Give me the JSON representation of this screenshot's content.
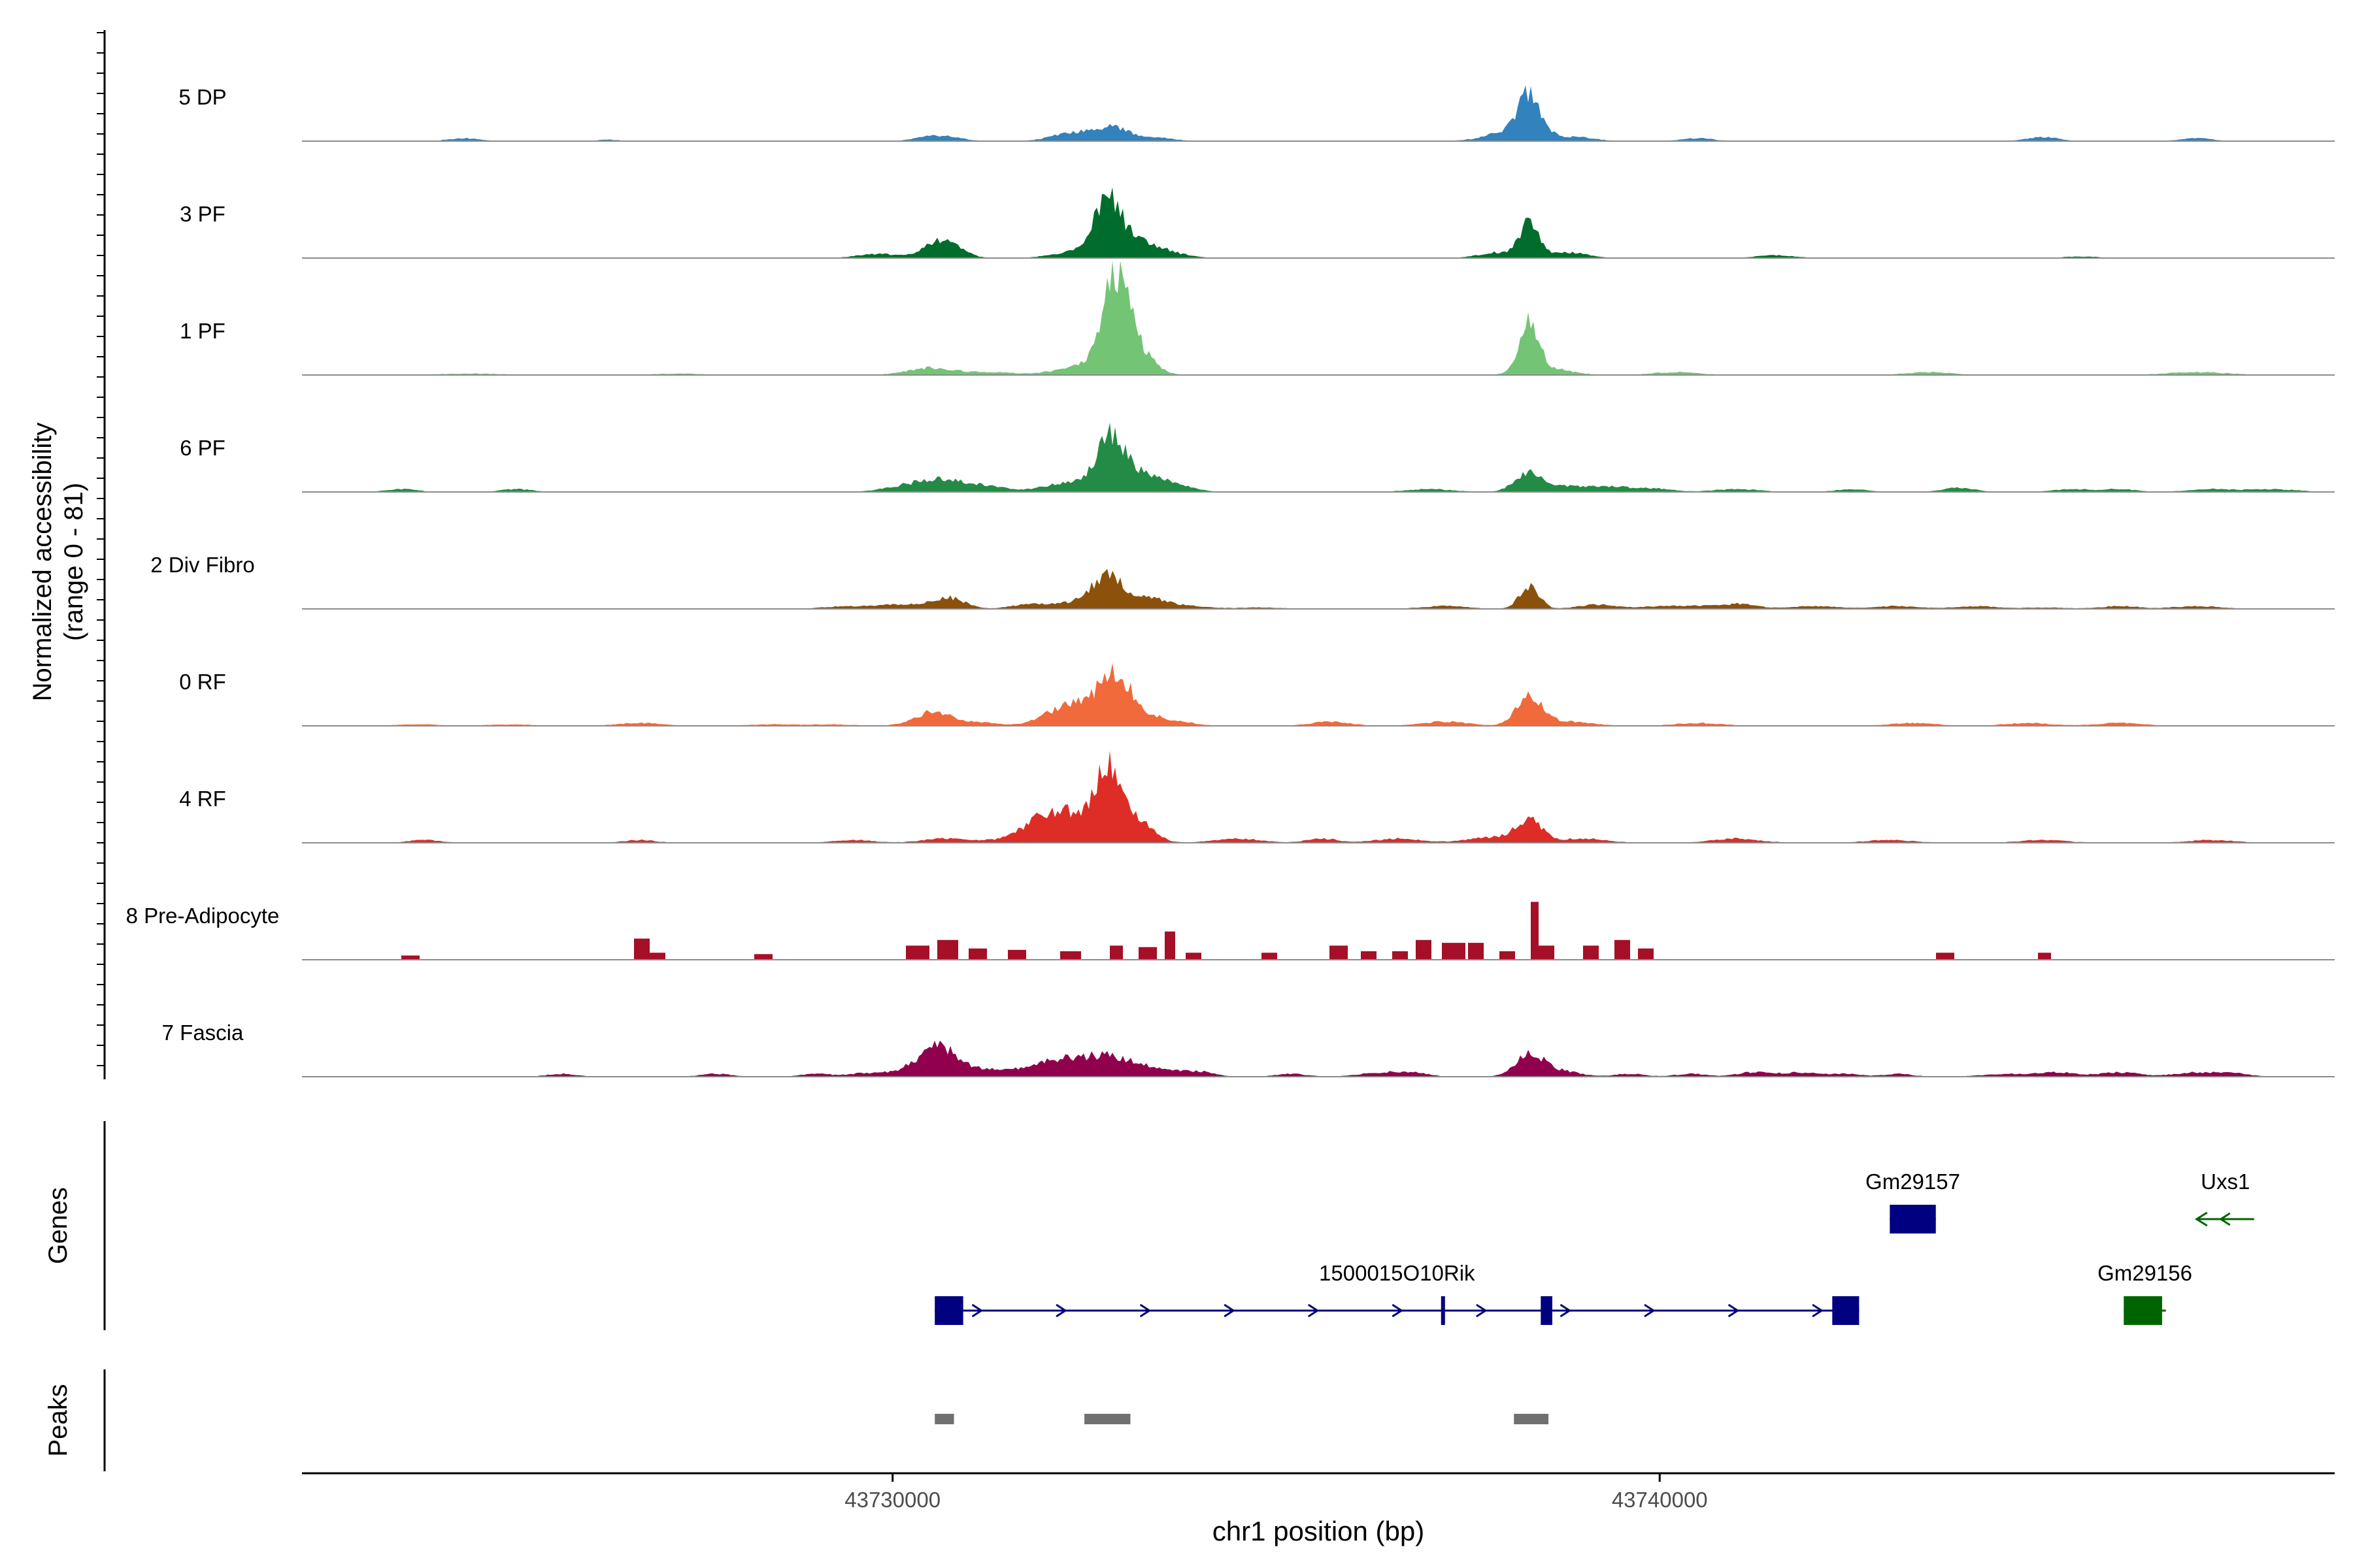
{
  "chart_data": {
    "type": "area",
    "title": "",
    "xlabel": "chr1 position (bp)",
    "ylabel_line1": "Normalized accessibility",
    "ylabel_line2": "(range 0 - 81)",
    "y_range": [
      0,
      81
    ],
    "x_range": [
      43722300,
      43748800
    ],
    "x_ticks": [
      43730000,
      43740000
    ],
    "x_tick_labels": [
      "43730000",
      "43740000"
    ],
    "tracks": [
      {
        "name": "5 DP",
        "color": "#3182BD",
        "style": "smooth",
        "peaks": [
          [
            43724400,
            2,
            200
          ],
          [
            43726300,
            1,
            150
          ],
          [
            43730600,
            4,
            250
          ],
          [
            43732300,
            5,
            250
          ],
          [
            43732850,
            10,
            250
          ],
          [
            43733500,
            2,
            200
          ],
          [
            43738300,
            26,
            130
          ],
          [
            43738200,
            9,
            350
          ],
          [
            43739000,
            2,
            200
          ],
          [
            43740500,
            2,
            200
          ],
          [
            43745000,
            3,
            200
          ],
          [
            43747000,
            2,
            200
          ]
        ]
      },
      {
        "name": "3 PF",
        "color": "#006D2C",
        "style": "smooth",
        "peaks": [
          [
            43730650,
            13,
            220
          ],
          [
            43729800,
            3,
            250
          ],
          [
            43732300,
            4,
            250
          ],
          [
            43732800,
            40,
            180
          ],
          [
            43733200,
            10,
            250
          ],
          [
            43733600,
            3,
            250
          ],
          [
            43738300,
            24,
            120
          ],
          [
            43737900,
            4,
            250
          ],
          [
            43738800,
            4,
            250
          ],
          [
            43741500,
            2,
            250
          ],
          [
            43745500,
            1,
            250
          ]
        ]
      },
      {
        "name": "1 PF",
        "color": "#74C476",
        "style": "smooth",
        "peaks": [
          [
            43724500,
            1,
            400
          ],
          [
            43727200,
            1,
            300
          ],
          [
            43730500,
            5,
            300
          ],
          [
            43731300,
            2,
            300
          ],
          [
            43732500,
            6,
            350
          ],
          [
            43732900,
            65,
            170
          ],
          [
            43733200,
            15,
            200
          ],
          [
            43738300,
            34,
            120
          ],
          [
            43738500,
            5,
            300
          ],
          [
            43740200,
            2,
            300
          ],
          [
            43743500,
            2,
            300
          ],
          [
            43747000,
            2,
            400
          ]
        ]
      },
      {
        "name": "6 PF",
        "color": "#238B45",
        "style": "smooth",
        "peaks": [
          [
            43723600,
            2,
            200
          ],
          [
            43725100,
            2,
            200
          ],
          [
            43730200,
            4,
            300
          ],
          [
            43730700,
            8,
            300
          ],
          [
            43731300,
            3,
            250
          ],
          [
            43732300,
            7,
            300
          ],
          [
            43732850,
            38,
            180
          ],
          [
            43733300,
            12,
            250
          ],
          [
            43733800,
            3,
            200
          ],
          [
            43737000,
            2,
            300
          ],
          [
            43738300,
            14,
            180
          ],
          [
            43738900,
            4,
            300
          ],
          [
            43739500,
            3,
            250
          ],
          [
            43740000,
            2,
            200
          ],
          [
            43741000,
            2,
            300
          ],
          [
            43742500,
            2,
            200
          ],
          [
            43743900,
            3,
            200
          ],
          [
            43745400,
            2,
            250
          ],
          [
            43746000,
            2,
            200
          ],
          [
            43747200,
            2,
            300
          ],
          [
            43748000,
            2,
            300
          ]
        ]
      },
      {
        "name": "2 Div Fibro",
        "color": "#8C510A",
        "style": "smooth",
        "peaks": [
          [
            43729200,
            1,
            200
          ],
          [
            43729700,
            2,
            300
          ],
          [
            43730300,
            3,
            300
          ],
          [
            43730750,
            7,
            200
          ],
          [
            43731800,
            3,
            250
          ],
          [
            43732400,
            4,
            300
          ],
          [
            43732800,
            21,
            200
          ],
          [
            43733300,
            7,
            250
          ],
          [
            43733800,
            2,
            300
          ],
          [
            43734800,
            1,
            300
          ],
          [
            43737200,
            2,
            300
          ],
          [
            43738300,
            16,
            130
          ],
          [
            43739200,
            3,
            250
          ],
          [
            43740100,
            2,
            300
          ],
          [
            43740700,
            2,
            250
          ],
          [
            43741100,
            3,
            200
          ],
          [
            43742000,
            2,
            300
          ],
          [
            43743100,
            2,
            300
          ],
          [
            43744100,
            2,
            250
          ],
          [
            43745000,
            1,
            300
          ],
          [
            43746000,
            2,
            250
          ],
          [
            43747000,
            2,
            300
          ]
        ]
      },
      {
        "name": "0 RF",
        "color": "#F16A3B",
        "style": "smooth",
        "peaks": [
          [
            43723800,
            1,
            300
          ],
          [
            43725000,
            1,
            300
          ],
          [
            43726700,
            2,
            300
          ],
          [
            43728400,
            1,
            300
          ],
          [
            43729200,
            1,
            300
          ],
          [
            43730550,
            10,
            250
          ],
          [
            43731200,
            2,
            200
          ],
          [
            43732300,
            14,
            300
          ],
          [
            43732900,
            34,
            230
          ],
          [
            43733500,
            5,
            300
          ],
          [
            43735700,
            3,
            250
          ],
          [
            43737200,
            3,
            300
          ],
          [
            43738300,
            20,
            170
          ],
          [
            43738800,
            3,
            300
          ],
          [
            43740500,
            2,
            300
          ],
          [
            43743300,
            2,
            300
          ],
          [
            43744800,
            2,
            300
          ],
          [
            43746000,
            2,
            300
          ]
        ]
      },
      {
        "name": "4 RF",
        "color": "#DE2D26",
        "style": "smooth",
        "peaks": [
          [
            43723900,
            2,
            200
          ],
          [
            43726700,
            2,
            200
          ],
          [
            43729500,
            2,
            250
          ],
          [
            43730700,
            3,
            300
          ],
          [
            43731500,
            2,
            300
          ],
          [
            43732000,
            20,
            250
          ],
          [
            43732350,
            12,
            150
          ],
          [
            43732800,
            52,
            180
          ],
          [
            43733200,
            15,
            200
          ],
          [
            43734500,
            3,
            300
          ],
          [
            43735600,
            3,
            200
          ],
          [
            43736600,
            3,
            300
          ],
          [
            43737800,
            4,
            300
          ],
          [
            43738300,
            15,
            170
          ],
          [
            43739000,
            3,
            300
          ],
          [
            43741000,
            3,
            300
          ],
          [
            43743000,
            2,
            300
          ],
          [
            43745000,
            2,
            300
          ],
          [
            43747200,
            2,
            300
          ]
        ]
      },
      {
        "name": "8 Pre-Adipocyte",
        "color": "#A50F27",
        "style": "block",
        "peaks": [
          [
            43723700,
            3,
            250
          ],
          [
            43726700,
            15,
            200
          ],
          [
            43726900,
            5,
            250
          ],
          [
            43728300,
            4,
            250
          ],
          [
            43730300,
            10,
            300
          ],
          [
            43730700,
            14,
            250
          ],
          [
            43731100,
            8,
            250
          ],
          [
            43731600,
            7,
            250
          ],
          [
            43732300,
            6,
            250
          ],
          [
            43732900,
            10,
            200
          ],
          [
            43733300,
            9,
            250
          ],
          [
            43733600,
            20,
            150
          ],
          [
            43733900,
            5,
            200
          ],
          [
            43734900,
            5,
            200
          ],
          [
            43735800,
            10,
            250
          ],
          [
            43736200,
            6,
            200
          ],
          [
            43736600,
            6,
            200
          ],
          [
            43736900,
            14,
            200
          ],
          [
            43737300,
            12,
            300
          ],
          [
            43737600,
            12,
            200
          ],
          [
            43738000,
            6,
            200
          ],
          [
            43738350,
            41,
            120
          ],
          [
            43738500,
            10,
            200
          ],
          [
            43739100,
            10,
            200
          ],
          [
            43739500,
            14,
            200
          ],
          [
            43739800,
            8,
            200
          ],
          [
            43743700,
            5,
            250
          ],
          [
            43745000,
            5,
            200
          ]
        ]
      },
      {
        "name": "7 Fascia",
        "color": "#91004D",
        "style": "smooth",
        "peaks": [
          [
            43725700,
            2,
            200
          ],
          [
            43727700,
            2,
            200
          ],
          [
            43729000,
            2,
            200
          ],
          [
            43729600,
            2,
            200
          ],
          [
            43730200,
            4,
            300
          ],
          [
            43730600,
            20,
            230
          ],
          [
            43731200,
            5,
            300
          ],
          [
            43732000,
            8,
            300
          ],
          [
            43732400,
            6,
            300
          ],
          [
            43732800,
            11,
            300
          ],
          [
            43733200,
            5,
            250
          ],
          [
            43733600,
            3,
            250
          ],
          [
            43734000,
            3,
            200
          ],
          [
            43735200,
            2,
            200
          ],
          [
            43736400,
            3,
            300
          ],
          [
            43736800,
            2,
            200
          ],
          [
            43738300,
            16,
            180
          ],
          [
            43738700,
            4,
            250
          ],
          [
            43739600,
            2,
            200
          ],
          [
            43740400,
            2,
            200
          ],
          [
            43741200,
            3,
            200
          ],
          [
            43741800,
            3,
            250
          ],
          [
            43742400,
            2,
            200
          ],
          [
            43743100,
            2,
            200
          ],
          [
            43744500,
            2,
            300
          ],
          [
            43745200,
            3,
            250
          ],
          [
            43746000,
            3,
            250
          ],
          [
            43747000,
            3,
            300
          ],
          [
            43747500,
            2,
            200
          ]
        ]
      }
    ],
    "genes_panel_label": "Genes",
    "genes": [
      {
        "name": "Gm29157",
        "start": 43743000,
        "end": 43743600,
        "strand": "+",
        "color": "#000080",
        "row": 1,
        "exons": [
          [
            43743000,
            43743600
          ]
        ]
      },
      {
        "name": "Uxs1",
        "start": 43747000,
        "end": 43747750,
        "strand": "-",
        "color": "#006400",
        "row": 1,
        "exons": []
      },
      {
        "name": "1500015O10Rik",
        "start": 43730550,
        "end": 43742600,
        "strand": "+",
        "color": "#000080",
        "row": 2,
        "exons": [
          [
            43730550,
            43730920
          ],
          [
            43737150,
            43737200
          ],
          [
            43738450,
            43738600
          ],
          [
            43742250,
            43742600
          ]
        ]
      },
      {
        "name": "Gm29156",
        "start": 43746050,
        "end": 43746600,
        "strand": "-",
        "color": "#006400",
        "row": 2,
        "exons": [
          [
            43746050,
            43746550
          ]
        ]
      }
    ],
    "peaks_panel_label": "Peaks",
    "peak_regions": [
      [
        43730550,
        43730800
      ],
      [
        43732500,
        43733100
      ],
      [
        43738100,
        43738550
      ]
    ],
    "peak_color": "#707070"
  }
}
